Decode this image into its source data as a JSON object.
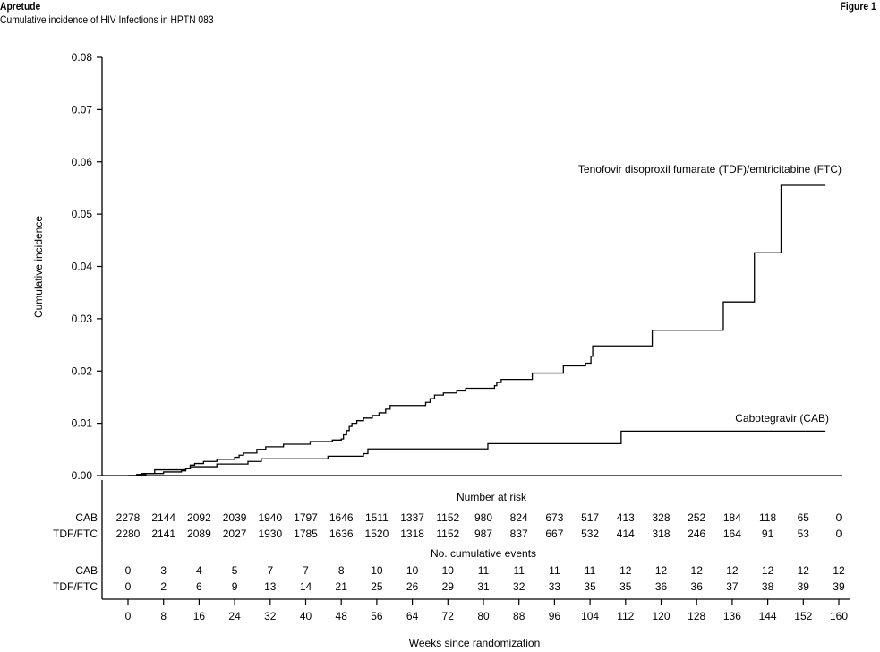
{
  "header": {
    "brand": "Apretude",
    "subtitle": "Cumulative incidence of HIV Infections in HPTN 083",
    "figure_label": "Figure 1"
  },
  "chart_data": {
    "type": "line",
    "step": true,
    "title": "Cumulative incidence of HIV Infections in HPTN 083",
    "xlabel": "Weeks since randomization",
    "ylabel": "Cumulative incidence",
    "xlim": [
      0,
      160
    ],
    "ylim": [
      0,
      0.08
    ],
    "xticks": [
      0,
      8,
      16,
      24,
      32,
      40,
      48,
      56,
      64,
      72,
      80,
      88,
      96,
      104,
      112,
      120,
      128,
      136,
      144,
      152,
      160
    ],
    "yticks": [
      "0.00",
      "0.01",
      "0.02",
      "0.03",
      "0.04",
      "0.05",
      "0.06",
      "0.07",
      "0.08"
    ],
    "series": [
      {
        "name": "Tenofovir disoproxil fumarate (TDF)/emtricitabine (FTC)",
        "points": [
          [
            0,
            0
          ],
          [
            2,
            0.0002
          ],
          [
            3,
            0.0004
          ],
          [
            6,
            0.0011
          ],
          [
            12,
            0.0011
          ],
          [
            13,
            0.0014
          ],
          [
            14,
            0.002
          ],
          [
            15,
            0.0023
          ],
          [
            17,
            0.0027
          ],
          [
            20,
            0.0031
          ],
          [
            24,
            0.0035
          ],
          [
            25,
            0.0039
          ],
          [
            26,
            0.0043
          ],
          [
            29,
            0.005
          ],
          [
            31,
            0.0055
          ],
          [
            35,
            0.006
          ],
          [
            41,
            0.0065
          ],
          [
            46,
            0.0068
          ],
          [
            48,
            0.007
          ],
          [
            48.5,
            0.0078
          ],
          [
            49.2,
            0.0086
          ],
          [
            49.8,
            0.0094
          ],
          [
            50.4,
            0.01
          ],
          [
            51.5,
            0.0105
          ],
          [
            53,
            0.011
          ],
          [
            55,
            0.0115
          ],
          [
            56.5,
            0.012
          ],
          [
            58,
            0.0127
          ],
          [
            59,
            0.0134
          ],
          [
            67,
            0.014
          ],
          [
            68,
            0.0147
          ],
          [
            69,
            0.0154
          ],
          [
            71,
            0.0158
          ],
          [
            74,
            0.0162
          ],
          [
            76,
            0.0167
          ],
          [
            82.5,
            0.0172
          ],
          [
            83,
            0.0178
          ],
          [
            84,
            0.0184
          ],
          [
            91,
            0.0196
          ],
          [
            98,
            0.021
          ],
          [
            103,
            0.0215
          ],
          [
            104.2,
            0.0228
          ],
          [
            104.6,
            0.0248
          ],
          [
            111,
            0.0248
          ],
          [
            117,
            0.0248
          ],
          [
            118,
            0.0278
          ],
          [
            133,
            0.0278
          ],
          [
            134,
            0.0332
          ],
          [
            140,
            0.0332
          ],
          [
            141,
            0.0426
          ],
          [
            146,
            0.0426
          ],
          [
            147,
            0.0555
          ],
          [
            157,
            0.0555
          ]
        ],
        "end": 157
      },
      {
        "name": "Cabotegravir (CAB)",
        "points": [
          [
            0,
            0
          ],
          [
            2,
            0.0002
          ],
          [
            4,
            0.0004
          ],
          [
            8,
            0.0007
          ],
          [
            12,
            0.0009
          ],
          [
            13,
            0.0013
          ],
          [
            14,
            0.0017
          ],
          [
            20,
            0.0022
          ],
          [
            27,
            0.0027
          ],
          [
            30,
            0.0032
          ],
          [
            45,
            0.0037
          ],
          [
            53,
            0.0042
          ],
          [
            54,
            0.0051
          ],
          [
            80,
            0.0051
          ],
          [
            81,
            0.0061
          ],
          [
            110,
            0.0061
          ],
          [
            111,
            0.0085
          ],
          [
            157,
            0.0085
          ]
        ],
        "end": 157
      }
    ],
    "annotations": {
      "tdf": "Tenofovir disoproxil fumarate (TDF)/emtricitabine (FTC)",
      "cab": "Cabotegravir (CAB)"
    },
    "risk_table": {
      "title": "Number at risk",
      "rows": [
        {
          "label": "CAB",
          "values": [
            2278,
            2144,
            2092,
            2039,
            1940,
            1797,
            1646,
            1511,
            1337,
            1152,
            980,
            824,
            673,
            517,
            413,
            328,
            252,
            184,
            118,
            65,
            0
          ]
        },
        {
          "label": "TDF/FTC",
          "values": [
            2280,
            2141,
            2089,
            2027,
            1930,
            1785,
            1636,
            1520,
            1318,
            1152,
            987,
            837,
            667,
            532,
            414,
            318,
            246,
            164,
            91,
            53,
            0
          ]
        }
      ]
    },
    "events_table": {
      "title": "No. cumulative events",
      "rows": [
        {
          "label": "CAB",
          "values": [
            0,
            3,
            4,
            5,
            7,
            7,
            8,
            10,
            10,
            10,
            11,
            11,
            11,
            11,
            12,
            12,
            12,
            12,
            12,
            12,
            12
          ]
        },
        {
          "label": "TDF/FTC",
          "values": [
            0,
            2,
            6,
            9,
            13,
            14,
            21,
            25,
            26,
            29,
            31,
            32,
            33,
            35,
            35,
            36,
            36,
            37,
            38,
            39,
            39
          ]
        }
      ]
    },
    "grid": false,
    "legend": "none"
  }
}
